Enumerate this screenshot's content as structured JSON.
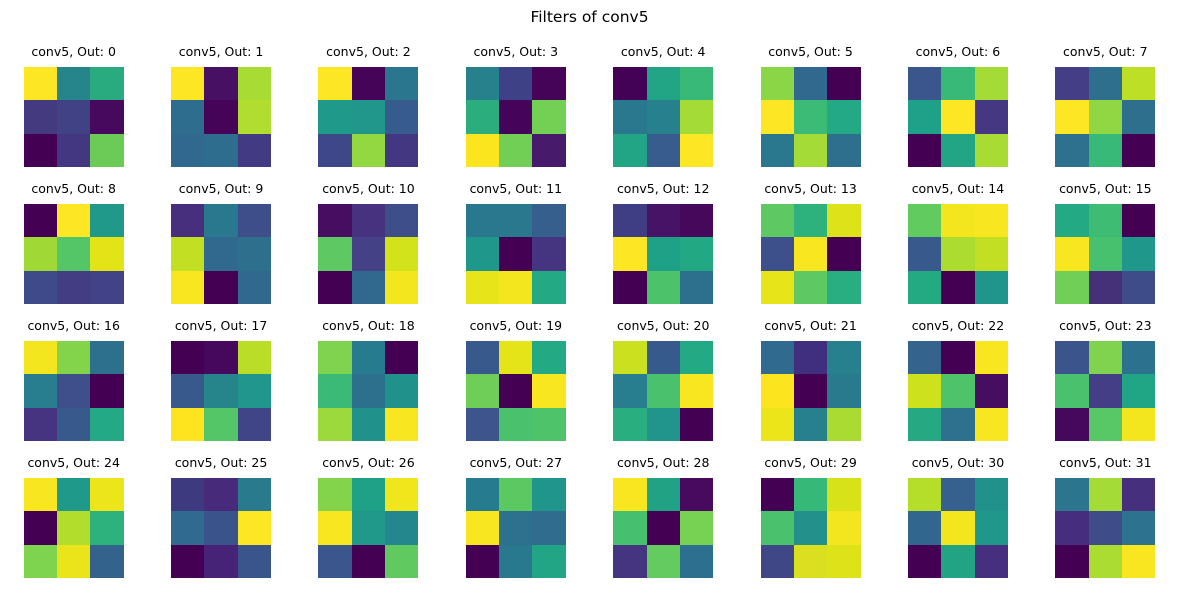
{
  "figure": {
    "suptitle": "Filters of conv5"
  },
  "chart_data": {
    "type": "heatmap",
    "title": "Filters of conv5",
    "colormap": "viridis",
    "layout": {
      "grid_rows": 4,
      "grid_cols": 8,
      "filter_size": "3x3",
      "legend": "none",
      "axes": "off"
    },
    "filters": [
      {
        "label": "conv5, Out: 0",
        "cells": [
          "#fde725",
          "#25858b",
          "#2aab7f",
          "#433a7f",
          "#414186",
          "#47095e",
          "#440154",
          "#433781",
          "#6ccb57"
        ]
      },
      {
        "label": "conv5, Out: 1",
        "cells": [
          "#fde725",
          "#471063",
          "#a8db33",
          "#2f6d8e",
          "#450457",
          "#b0dd2f",
          "#31688e",
          "#2f6d8e",
          "#433a84"
        ]
      },
      {
        "label": "conv5, Out: 2",
        "cells": [
          "#fde725",
          "#450457",
          "#2a768e",
          "#1f998a",
          "#21968b",
          "#375b8d",
          "#3e4889",
          "#93d741",
          "#433781"
        ]
      },
      {
        "label": "conv5, Out: 3",
        "cells": [
          "#26818c",
          "#3e4186",
          "#450458",
          "#2bad7e",
          "#44045a",
          "#74d054",
          "#fbe51f",
          "#71cf56",
          "#481a6c"
        ]
      },
      {
        "label": "conv5, Out: 4",
        "cells": [
          "#440256",
          "#21a585",
          "#38b977",
          "#2a788e",
          "#27808e",
          "#a5db36",
          "#21a585",
          "#375c8d",
          "#fde725"
        ]
      },
      {
        "label": "conv5, Out: 5",
        "cells": [
          "#8bd646",
          "#31688e",
          "#440154",
          "#fde725",
          "#3bbb75",
          "#23a983",
          "#2a788e",
          "#a5db36",
          "#2e6f8e"
        ]
      },
      {
        "label": "conv5, Out: 6",
        "cells": [
          "#3a568c",
          "#38b977",
          "#a5db36",
          "#1fa088",
          "#fde725",
          "#453781",
          "#440154",
          "#21a585",
          "#a8db33"
        ]
      },
      {
        "label": "conv5, Out: 7",
        "cells": [
          "#433e85",
          "#2e6f8e",
          "#bddf26",
          "#fde725",
          "#90d743",
          "#2e6f8e",
          "#2d718e",
          "#38b977",
          "#440154"
        ]
      },
      {
        "label": "conv5, Out: 8",
        "cells": [
          "#440154",
          "#fde725",
          "#20998a",
          "#a0d936",
          "#55c667",
          "#e2e418",
          "#3f4a8a",
          "#433e84",
          "#424288"
        ]
      },
      {
        "label": "conv5, Out: 9",
        "cells": [
          "#472f7d",
          "#2a788e",
          "#3d4e8a",
          "#c2df23",
          "#31688e",
          "#2e6f8e",
          "#f8e621",
          "#440154",
          "#31688e"
        ]
      },
      {
        "label": "conv5, Out: 10",
        "cells": [
          "#470d60",
          "#46327e",
          "#3d4e8a",
          "#5ec962",
          "#444186",
          "#d2e21b",
          "#440154",
          "#31688e",
          "#f4e61e"
        ]
      },
      {
        "label": "conv5, Out: 11",
        "cells": [
          "#2a788e",
          "#2a788e",
          "#365f8d",
          "#1f978b",
          "#440154",
          "#453580",
          "#e7e419",
          "#f4e61e",
          "#23a983"
        ]
      },
      {
        "label": "conv5, Out: 12",
        "cells": [
          "#3f3e85",
          "#461367",
          "#45085b",
          "#fde725",
          "#1fa187",
          "#23a884",
          "#440154",
          "#4cc36a",
          "#2d708e"
        ]
      },
      {
        "label": "conv5, Out: 13",
        "cells": [
          "#5ec962",
          "#2db27d",
          "#dde318",
          "#3d508b",
          "#f8e621",
          "#440154",
          "#e7e419",
          "#5ec962",
          "#28ae80"
        ]
      },
      {
        "label": "conv5, Out: 14",
        "cells": [
          "#62cb5f",
          "#f4e61e",
          "#f8e621",
          "#38598c",
          "#addc30",
          "#c2df23",
          "#24aa83",
          "#440154",
          "#1f958b"
        ]
      },
      {
        "label": "conv5, Out: 15",
        "cells": [
          "#23a983",
          "#3fbc73",
          "#440154",
          "#f8e621",
          "#48c16e",
          "#1f978b",
          "#70cf57",
          "#453178",
          "#3e4c8a"
        ]
      },
      {
        "label": "conv5, Out: 16",
        "cells": [
          "#f4e61e",
          "#84d44b",
          "#2d708e",
          "#287d8e",
          "#3f4f8c",
          "#440154",
          "#463480",
          "#38598c",
          "#23a983"
        ]
      },
      {
        "label": "conv5, Out: 17",
        "cells": [
          "#440154",
          "#45085c",
          "#bade27",
          "#38598c",
          "#26858b",
          "#21968c",
          "#fce51f",
          "#54c667",
          "#3f4587"
        ]
      },
      {
        "label": "conv5, Out: 18",
        "cells": [
          "#80d34e",
          "#267b8e",
          "#440154",
          "#3aba76",
          "#2d708e",
          "#21918c",
          "#9bd93c",
          "#21918c",
          "#f8e621"
        ]
      },
      {
        "label": "conv5, Out: 19",
        "cells": [
          "#38598c",
          "#e5e419",
          "#23a983",
          "#6ece58",
          "#440154",
          "#f8e621",
          "#3e548c",
          "#4ac16d",
          "#4ec36a"
        ]
      },
      {
        "label": "conv5, Out: 20",
        "cells": [
          "#cae11f",
          "#375a8c",
          "#23a983",
          "#287d8e",
          "#4ac16d",
          "#f8e621",
          "#29af7f",
          "#21958b",
          "#440154"
        ]
      },
      {
        "label": "conv5, Out: 21",
        "cells": [
          "#306a8e",
          "#402f7e",
          "#27808e",
          "#fce41f",
          "#440154",
          "#2a7a8e",
          "#ece51a",
          "#27808e",
          "#aadb32"
        ]
      },
      {
        "label": "conv5, Out: 22",
        "cells": [
          "#34648d",
          "#440154",
          "#f8e621",
          "#cde11d",
          "#4ec369",
          "#470d60",
          "#26a982",
          "#2e718e",
          "#f8e621"
        ]
      },
      {
        "label": "conv5, Out: 23",
        "cells": [
          "#3b548b",
          "#7fd34e",
          "#2c718e",
          "#4ac16d",
          "#433e85",
          "#21a685",
          "#46085c",
          "#58c765",
          "#f4e61e"
        ]
      },
      {
        "label": "conv5, Out: 24",
        "cells": [
          "#f8e621",
          "#1f9a8a",
          "#ece51b",
          "#440154",
          "#b2dd2c",
          "#2db27d",
          "#7ed34f",
          "#eae51a",
          "#33628d"
        ]
      },
      {
        "label": "conv5, Out: 25",
        "cells": [
          "#3e3a80",
          "#472a7a",
          "#2a7a8e",
          "#306a8e",
          "#3a538b",
          "#fde725",
          "#440154",
          "#472377",
          "#3a548c"
        ]
      },
      {
        "label": "conv5, Out: 26",
        "cells": [
          "#84d44b",
          "#1fa187",
          "#f1e51c",
          "#f8e621",
          "#20998a",
          "#25878e",
          "#3a568c",
          "#440154",
          "#60ca60"
        ]
      },
      {
        "label": "conv5, Out: 27",
        "cells": [
          "#267c8e",
          "#5bc862",
          "#1f958b",
          "#f8e621",
          "#2d718e",
          "#2f6c8e",
          "#440154",
          "#29798e",
          "#21a585"
        ]
      },
      {
        "label": "conv5, Out: 28",
        "cells": [
          "#f8e621",
          "#21a284",
          "#470a5e",
          "#46c06f",
          "#440154",
          "#77d153",
          "#453480",
          "#63cb5f",
          "#2d6f8e"
        ]
      },
      {
        "label": "conv5, Out: 29",
        "cells": [
          "#440154",
          "#36b878",
          "#d8e219",
          "#49c16d",
          "#24908c",
          "#f4e61e",
          "#3f4787",
          "#dae020",
          "#dde318"
        ]
      },
      {
        "label": "conv5, Out: 30",
        "cells": [
          "#b5de2b",
          "#36608d",
          "#21918c",
          "#31668e",
          "#f4e61e",
          "#1f978b",
          "#440154",
          "#22a384",
          "#452f7e"
        ]
      },
      {
        "label": "conv5, Out: 31",
        "cells": [
          "#2c758e",
          "#a5db36",
          "#46307e",
          "#472d7d",
          "#3e4d89",
          "#2d728e",
          "#440154",
          "#aadc32",
          "#f8e621"
        ]
      }
    ]
  }
}
